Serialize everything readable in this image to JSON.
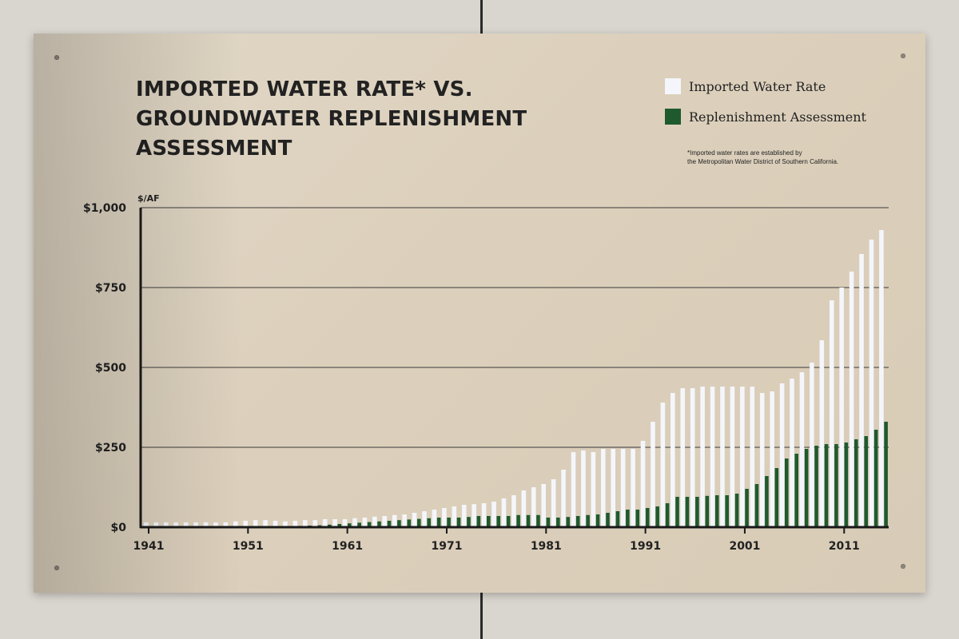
{
  "title_lines": [
    "IMPORTED WATER RATE* VS.",
    "GROUNDWATER REPLENISHMENT",
    "ASSESSMENT"
  ],
  "legend": [
    {
      "label": "Imported Water Rate",
      "color": "#f4f6fb"
    },
    {
      "label": "Replenishment Assessment",
      "color": "#1f5a2e"
    }
  ],
  "footnote": "*Imported water rates are established by\nthe Metropolitan Water District of Southern California.",
  "chart_data": {
    "type": "bar",
    "ylabel": "$/AF",
    "ylim": [
      0,
      1000
    ],
    "y_ticks": [
      "$1,000",
      "$750",
      "$500",
      "$250",
      "$0"
    ],
    "y_tick_values": [
      1000,
      750,
      500,
      250,
      0
    ],
    "x_tick_labels": [
      "1941",
      "1951",
      "1961",
      "1971",
      "1981",
      "1991",
      "2001",
      "2011"
    ],
    "x": [
      1941,
      1942,
      1943,
      1944,
      1945,
      1946,
      1947,
      1948,
      1949,
      1950,
      1951,
      1952,
      1953,
      1954,
      1955,
      1956,
      1957,
      1958,
      1959,
      1960,
      1961,
      1962,
      1963,
      1964,
      1965,
      1966,
      1967,
      1968,
      1969,
      1970,
      1971,
      1972,
      1973,
      1974,
      1975,
      1976,
      1977,
      1978,
      1979,
      1980,
      1981,
      1982,
      1983,
      1984,
      1985,
      1986,
      1987,
      1988,
      1989,
      1990,
      1991,
      1992,
      1993,
      1994,
      1995,
      1996,
      1997,
      1998,
      1999,
      2000,
      2001,
      2002,
      2003,
      2004,
      2005,
      2006,
      2007,
      2008,
      2009,
      2010,
      2011,
      2012,
      2013,
      2014,
      2015
    ],
    "series": [
      {
        "name": "Imported Water Rate",
        "color": "#f4f6fb",
        "values": [
          15,
          15,
          15,
          15,
          15,
          15,
          15,
          15,
          15,
          18,
          20,
          22,
          22,
          20,
          18,
          20,
          22,
          22,
          25,
          25,
          25,
          28,
          30,
          33,
          35,
          38,
          40,
          45,
          50,
          55,
          60,
          65,
          70,
          72,
          75,
          80,
          90,
          100,
          115,
          125,
          135,
          150,
          180,
          235,
          240,
          235,
          245,
          245,
          245,
          245,
          270,
          330,
          390,
          420,
          435,
          435,
          440,
          440,
          440,
          440,
          440,
          440,
          420,
          425,
          450,
          465,
          485,
          515,
          585,
          710,
          750,
          800,
          855,
          900,
          930
        ]
      },
      {
        "name": "Replenishment Assessment",
        "color": "#1f5a2e",
        "values": [
          0,
          0,
          0,
          0,
          0,
          0,
          0,
          0,
          0,
          0,
          0,
          0,
          0,
          2,
          3,
          4,
          5,
          6,
          8,
          10,
          12,
          14,
          16,
          18,
          20,
          22,
          24,
          26,
          28,
          30,
          30,
          30,
          32,
          35,
          35,
          35,
          35,
          38,
          38,
          38,
          30,
          30,
          32,
          35,
          38,
          40,
          45,
          50,
          55,
          55,
          60,
          65,
          75,
          95,
          95,
          95,
          98,
          100,
          100,
          105,
          120,
          135,
          160,
          185,
          215,
          230,
          245,
          255,
          260,
          260,
          265,
          275,
          285,
          305,
          330
        ]
      }
    ]
  }
}
